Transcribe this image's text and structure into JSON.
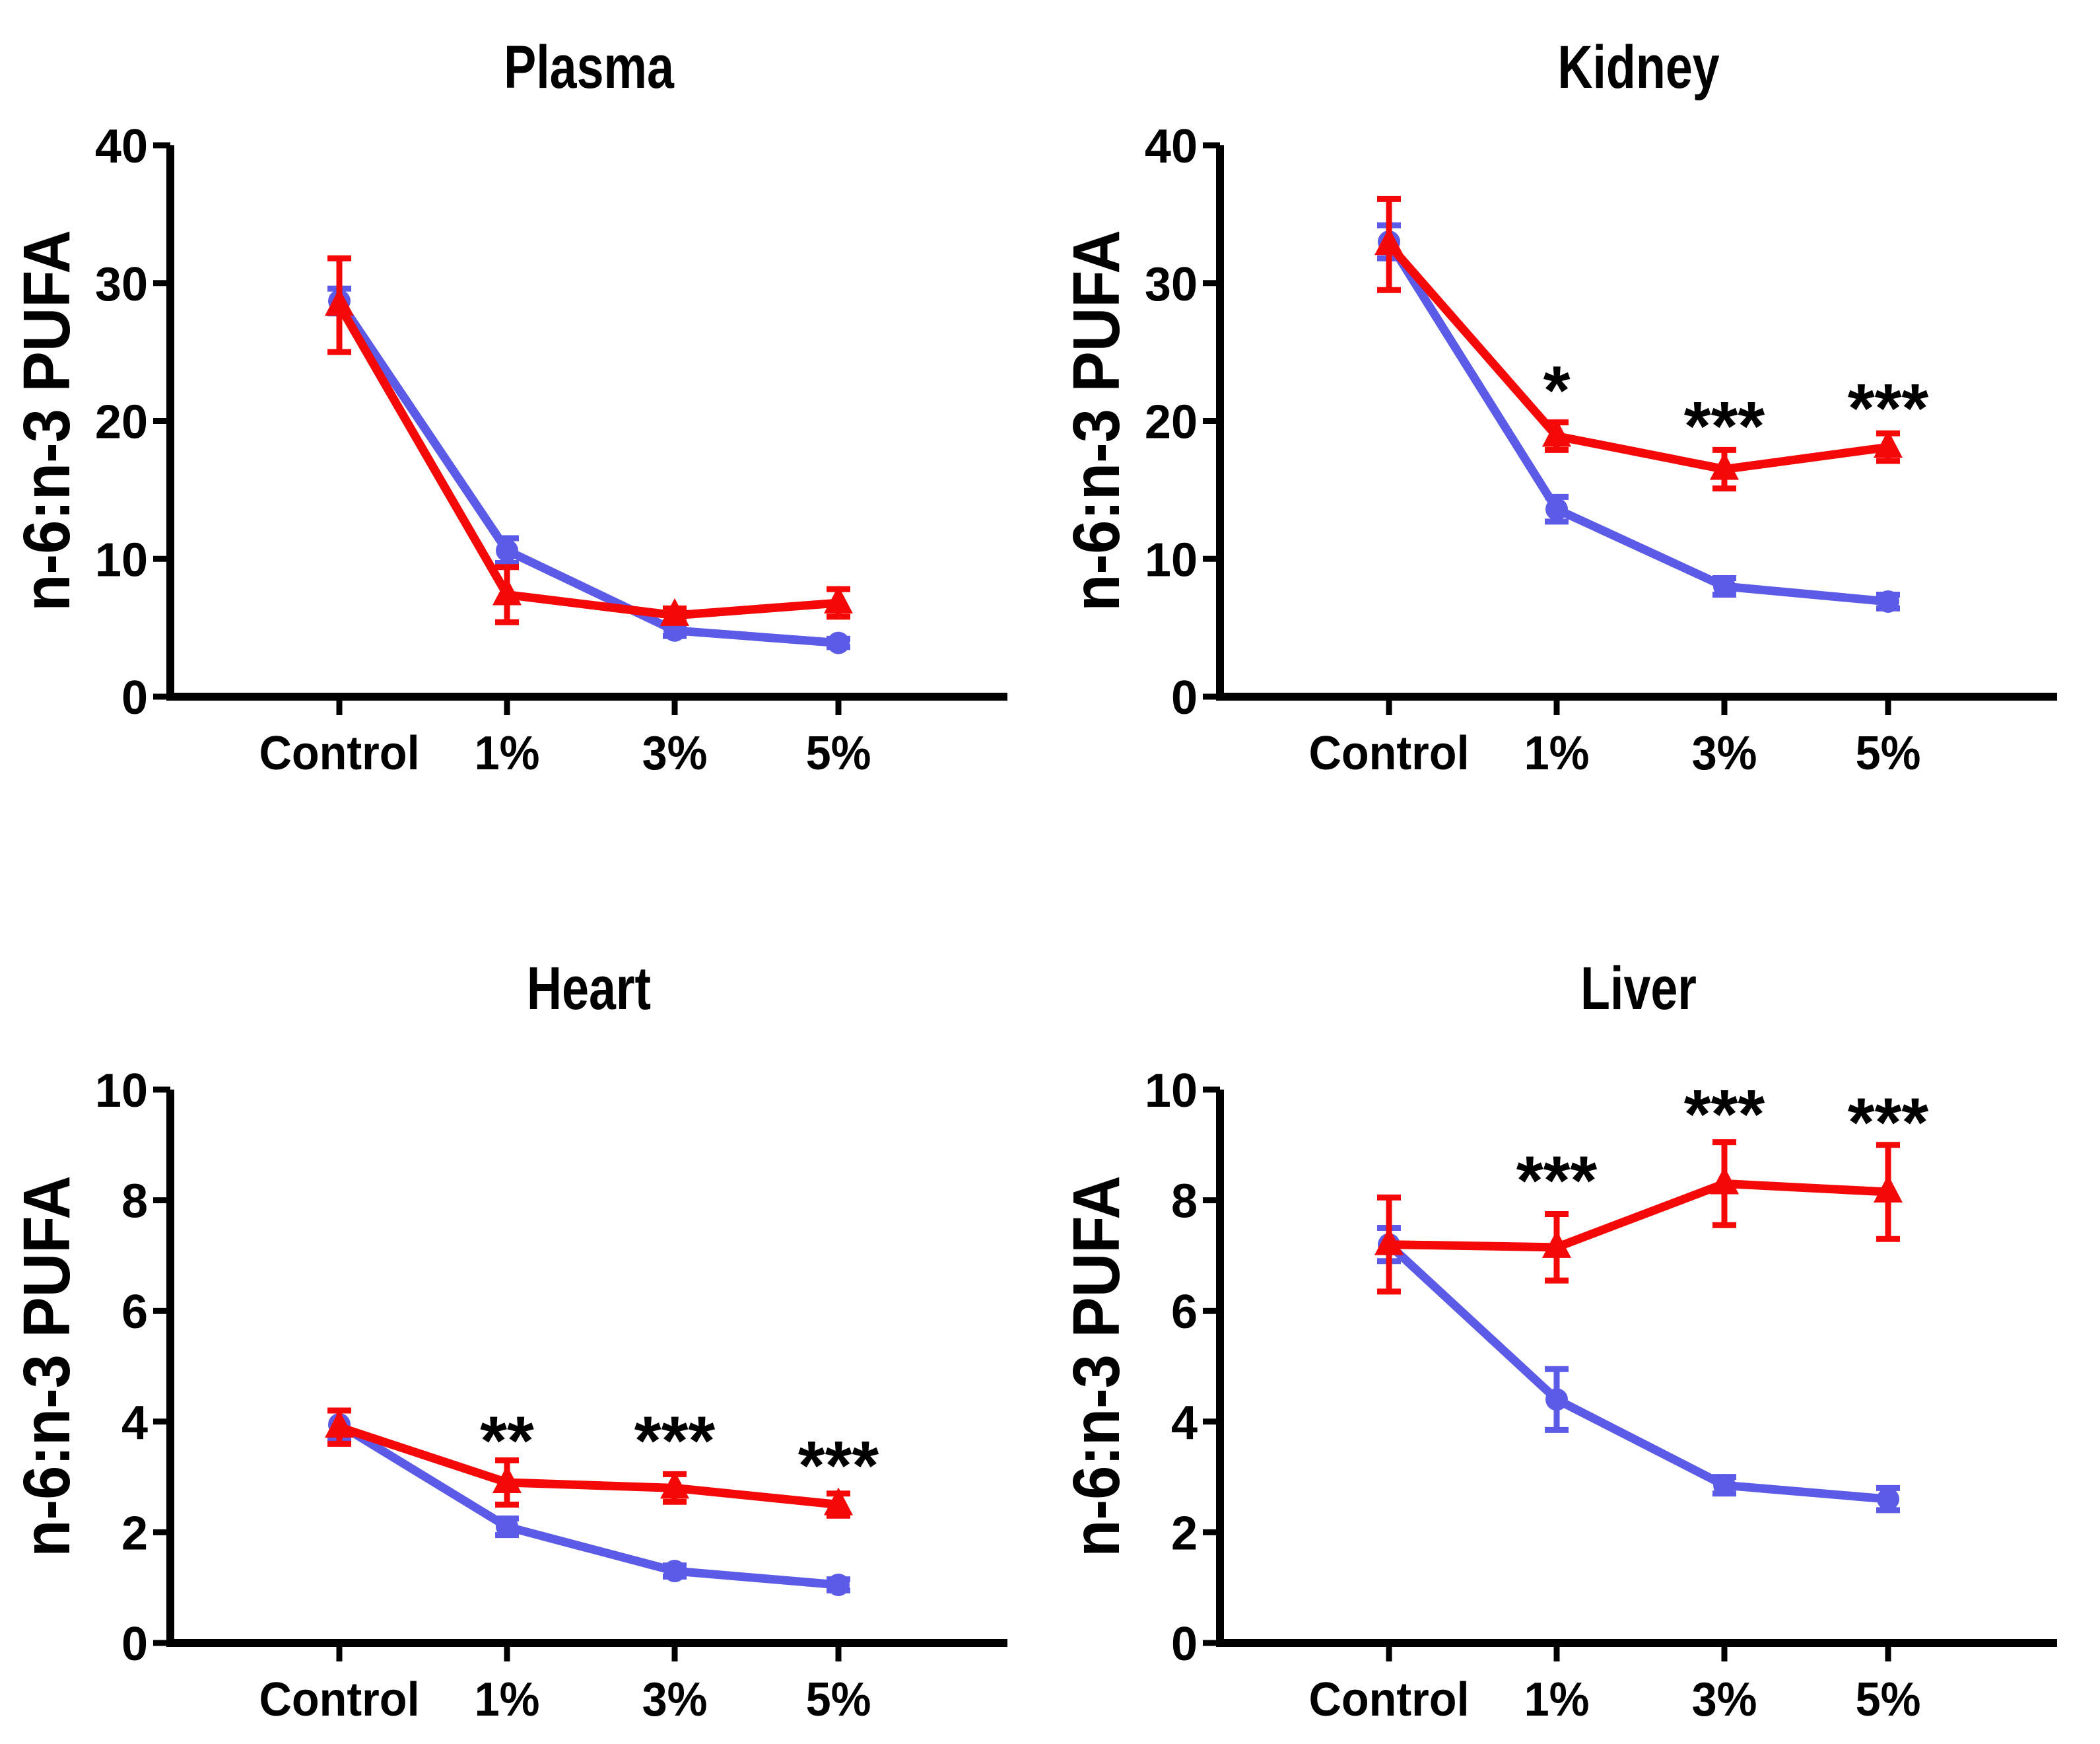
{
  "figure": {
    "background": "#ffffff",
    "panel_titles": [
      "Plasma",
      "Kidney",
      "Heart",
      "Liver"
    ],
    "categories": [
      "Control",
      "1%",
      "3%",
      "5%"
    ],
    "y_axis_label": "n-6:n-3 PUFA"
  },
  "colors": {
    "series_blue": "#5B5BE8",
    "series_red": "#F40808",
    "axis": "#000000",
    "significance": "#000000"
  },
  "chart_data": [
    {
      "type": "line",
      "title": "Plasma",
      "xlabel": "",
      "ylabel": "n-6:n-3 PUFA",
      "categories": [
        "Control",
        "1%",
        "3%",
        "5%"
      ],
      "ylim": [
        0,
        40
      ],
      "yticks": [
        0,
        10,
        20,
        30,
        40
      ],
      "grid": false,
      "legend": "none",
      "series": [
        {
          "name": "blue-circles",
          "marker": "circle",
          "color": "#5B5BE8",
          "values": [
            28.7,
            10.6,
            4.8,
            3.9
          ],
          "errors": [
            0.9,
            0.9,
            0.4,
            0.3
          ]
        },
        {
          "name": "red-triangles",
          "marker": "triangle",
          "color": "#F40808",
          "values": [
            28.4,
            7.4,
            5.9,
            6.8
          ],
          "errors": [
            3.4,
            2.0,
            0.5,
            1.0
          ]
        }
      ],
      "significance": []
    },
    {
      "type": "line",
      "title": "Kidney",
      "xlabel": "",
      "ylabel": "n-6:n-3 PUFA",
      "categories": [
        "Control",
        "1%",
        "3%",
        "5%"
      ],
      "ylim": [
        0,
        40
      ],
      "yticks": [
        0,
        10,
        20,
        30,
        40
      ],
      "grid": false,
      "legend": "none",
      "series": [
        {
          "name": "blue-circles",
          "marker": "circle",
          "color": "#5B5BE8",
          "values": [
            33.0,
            13.6,
            8.0,
            6.9
          ],
          "errors": [
            1.2,
            0.9,
            0.6,
            0.5
          ]
        },
        {
          "name": "red-triangles",
          "marker": "triangle",
          "color": "#F40808",
          "values": [
            32.8,
            18.9,
            16.5,
            18.1
          ],
          "errors": [
            3.3,
            1.0,
            1.4,
            1.0
          ]
        }
      ],
      "significance": [
        {
          "category": "1%",
          "category_index": 1,
          "label": "*",
          "y": 23.0
        },
        {
          "category": "3%",
          "category_index": 2,
          "label": "***",
          "y": 20.4
        },
        {
          "category": "5%",
          "category_index": 3,
          "label": "***",
          "y": 21.7
        }
      ]
    },
    {
      "type": "line",
      "title": "Heart",
      "xlabel": "",
      "ylabel": "n-6:n-3 PUFA",
      "categories": [
        "Control",
        "1%",
        "3%",
        "5%"
      ],
      "ylim": [
        0,
        10
      ],
      "yticks": [
        0,
        2,
        4,
        6,
        8,
        10
      ],
      "grid": false,
      "legend": "none",
      "series": [
        {
          "name": "blue-circles",
          "marker": "circle",
          "color": "#5B5BE8",
          "values": [
            3.95,
            2.1,
            1.3,
            1.05
          ],
          "errors": [
            0.25,
            0.15,
            0.1,
            0.1
          ]
        },
        {
          "name": "red-triangles",
          "marker": "triangle",
          "color": "#F40808",
          "values": [
            3.9,
            2.9,
            2.8,
            2.5
          ],
          "errors": [
            0.3,
            0.4,
            0.25,
            0.2
          ]
        }
      ],
      "significance": [
        {
          "category": "1%",
          "category_index": 1,
          "label": "**",
          "y": 3.85
        },
        {
          "category": "3%",
          "category_index": 2,
          "label": "***",
          "y": 3.85
        },
        {
          "category": "5%",
          "category_index": 3,
          "label": "***",
          "y": 3.4
        }
      ]
    },
    {
      "type": "line",
      "title": "Liver",
      "xlabel": "",
      "ylabel": "n-6:n-3 PUFA",
      "categories": [
        "Control",
        "1%",
        "3%",
        "5%"
      ],
      "ylim": [
        0,
        10
      ],
      "yticks": [
        0,
        2,
        4,
        6,
        8,
        10
      ],
      "grid": false,
      "legend": "none",
      "series": [
        {
          "name": "blue-circles",
          "marker": "circle",
          "color": "#5B5BE8",
          "values": [
            7.2,
            4.4,
            2.85,
            2.6
          ],
          "errors": [
            0.3,
            0.55,
            0.15,
            0.2
          ]
        },
        {
          "name": "red-triangles",
          "marker": "triangle",
          "color": "#F40808",
          "values": [
            7.2,
            7.15,
            8.3,
            8.15
          ],
          "errors": [
            0.85,
            0.6,
            0.75,
            0.85
          ]
        }
      ],
      "significance": [
        {
          "category": "1%",
          "category_index": 1,
          "label": "***",
          "y": 8.55
        },
        {
          "category": "3%",
          "category_index": 2,
          "label": "***",
          "y": 9.75
        },
        {
          "category": "5%",
          "category_index": 3,
          "label": "***",
          "y": 9.6
        }
      ]
    }
  ]
}
